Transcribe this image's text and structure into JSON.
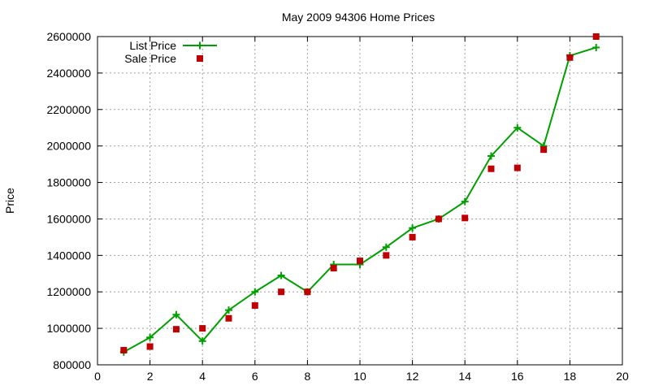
{
  "chart_data": {
    "type": "line",
    "title": "May 2009 94306 Home Prices",
    "xlabel": "",
    "ylabel": "Price",
    "xlim": [
      0,
      20
    ],
    "ylim": [
      800000,
      2600000
    ],
    "xticks": [
      "0",
      "2",
      "4",
      "6",
      "8",
      "10",
      "12",
      "14",
      "16",
      "18",
      "20"
    ],
    "yticks": [
      "800000",
      "1000000",
      "1200000",
      "1400000",
      "1600000",
      "1800000",
      "2000000",
      "2200000",
      "2400000",
      "2600000"
    ],
    "grid": true,
    "legend_position": "top-left",
    "series": [
      {
        "name": "List Price",
        "style": "line-with-plus-markers",
        "color": "#00a000",
        "x": [
          1,
          2,
          3,
          4,
          5,
          6,
          7,
          8,
          9,
          10,
          11,
          12,
          13,
          14,
          15,
          16,
          17,
          18,
          19
        ],
        "values": [
          870000,
          950000,
          1075000,
          930000,
          1100000,
          1200000,
          1290000,
          1200000,
          1350000,
          1350000,
          1445000,
          1550000,
          1600000,
          1695000,
          1945000,
          2100000,
          2000000,
          2495000,
          2540000
        ]
      },
      {
        "name": "Sale Price",
        "style": "square-markers",
        "color": "#c00000",
        "x": [
          1,
          2,
          3,
          4,
          5,
          6,
          7,
          8,
          9,
          10,
          11,
          12,
          13,
          14,
          15,
          16,
          17,
          18,
          19
        ],
        "values": [
          880000,
          900000,
          995000,
          1000000,
          1055000,
          1125000,
          1200000,
          1200000,
          1330000,
          1370000,
          1400000,
          1500000,
          1600000,
          1605000,
          1875000,
          1880000,
          1980000,
          2485000,
          2600000
        ]
      }
    ]
  }
}
